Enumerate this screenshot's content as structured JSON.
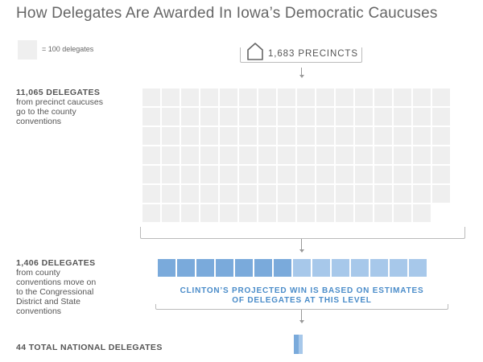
{
  "title": "How Delegates Are Awarded In Iowa’s Democratic Caucuses",
  "legend": {
    "label": "= 100 delegates",
    "swatch_color": "#efefef"
  },
  "precincts": {
    "label": "1,683 PRECINCTS",
    "icon": "house-icon"
  },
  "levels": [
    {
      "count_label": "11,065 DELEGATES",
      "description": [
        "from precinct caucuses",
        "go to the county",
        "conventions"
      ],
      "delegates": 11065
    },
    {
      "count_label": "1,406 DELEGATES",
      "description": [
        "from county",
        "conventions move on",
        "to the Congressional",
        "District and State",
        "conventions"
      ],
      "delegates": 1406
    },
    {
      "count_label": "44 TOTAL NATIONAL DELEGATES",
      "description": [],
      "delegates": 44
    }
  ],
  "callout": {
    "line1": "CLINTON’S PROJECTED WIN IS BASED ON ESTIMATES",
    "line2": "OF DELEGATES AT THIS LEVEL"
  },
  "colors": {
    "county_cell": "#efefef",
    "state_dark": "#7aaadb",
    "state_light": "#a7c8ea",
    "national_dark": "#7aaadb",
    "national_light": "#a7c8ea",
    "accent_text": "#4a8cc9",
    "connector": "#bbbbbb"
  },
  "chart_data": {
    "type": "unit-chart",
    "unit": 100,
    "state_split": {
      "dark_units": 7,
      "light_units": 7
    },
    "national_split": {
      "dark_fraction": 0.5
    }
  }
}
